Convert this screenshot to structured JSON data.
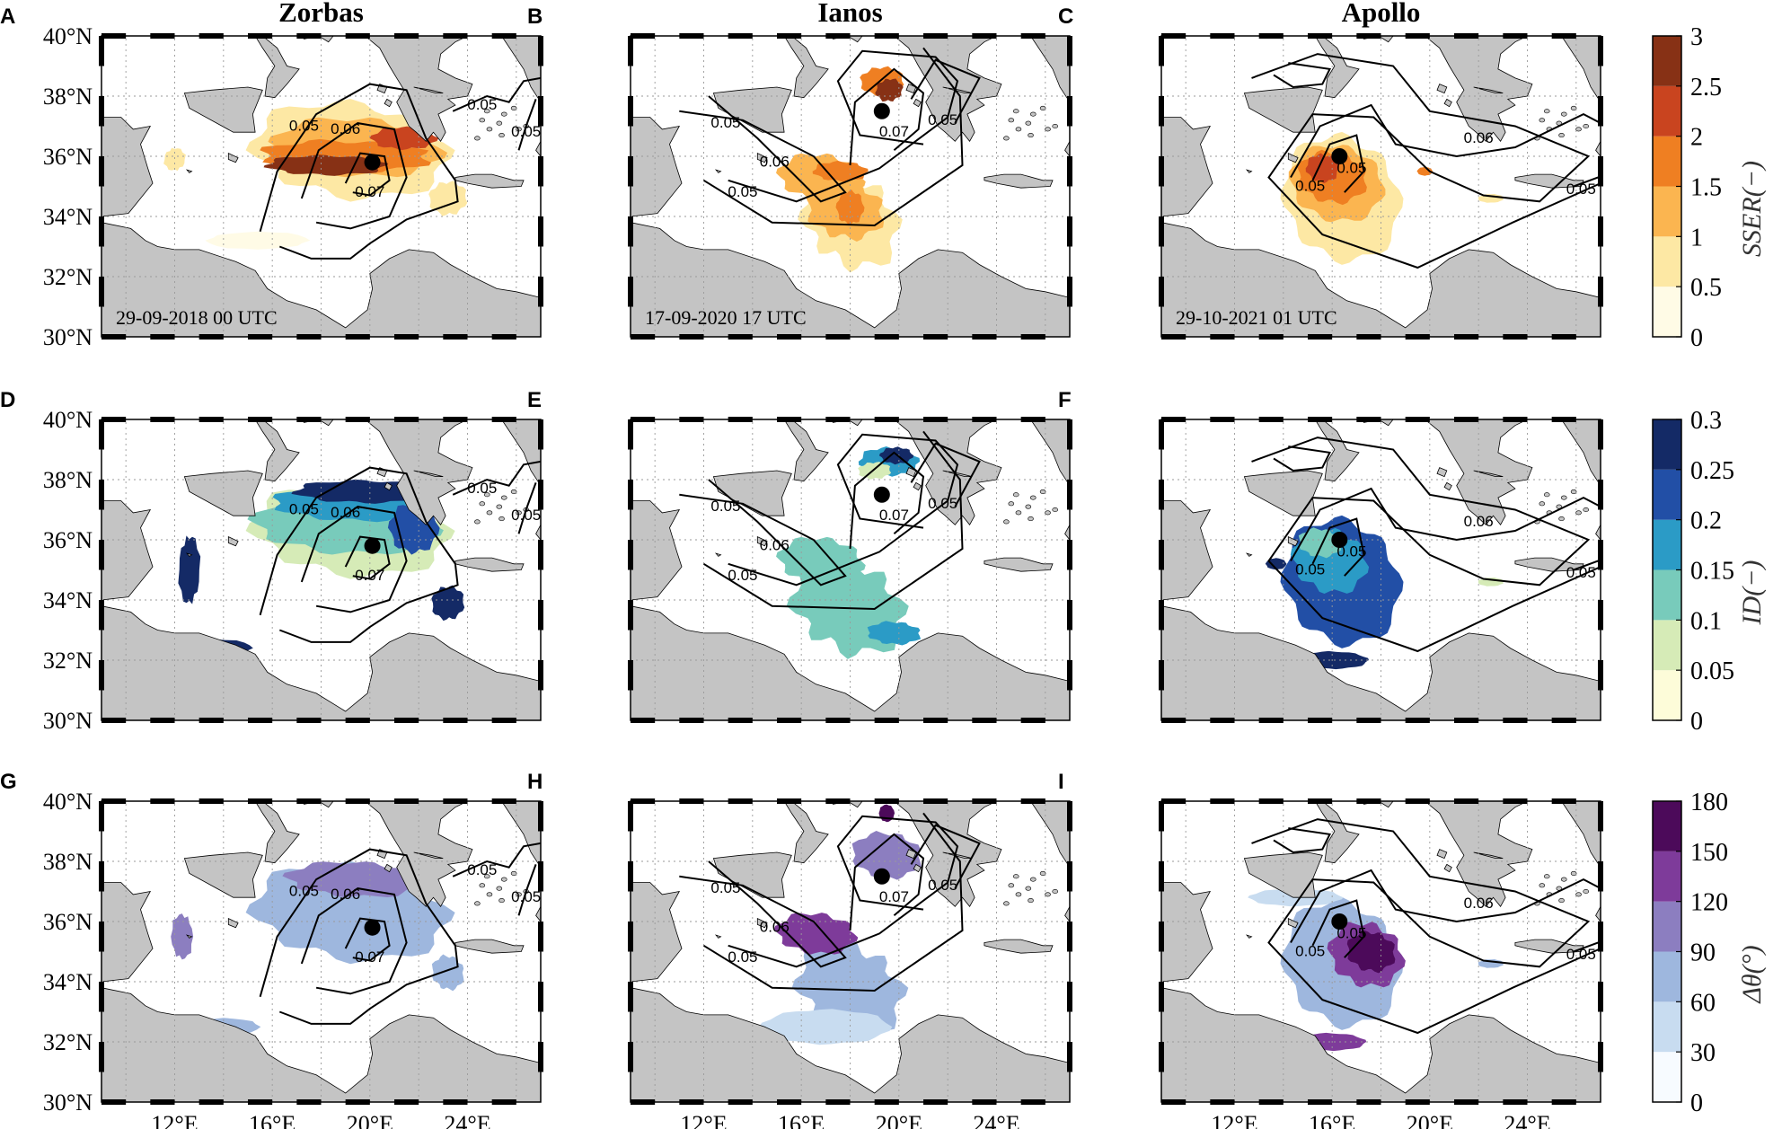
{
  "columns": [
    "Zorbas",
    "Ianos",
    "Apollo"
  ],
  "panel_labels": [
    "A",
    "B",
    "C",
    "D",
    "E",
    "F",
    "G",
    "H",
    "I"
  ],
  "timestamps": [
    "29-09-2018 00 UTC",
    "17-09-2020 17 UTC",
    "29-10-2021 01 UTC"
  ],
  "lat_labels": [
    "40°N",
    "38°N",
    "36°N",
    "34°N",
    "32°N",
    "30°N"
  ],
  "lon_labels": [
    "12°E",
    "16°E",
    "20°E",
    "24°E"
  ],
  "contour_labels": [
    "0.05",
    "0.06",
    "0.07"
  ],
  "colors": {
    "land": "#c4c4c4",
    "sea": "#ffffff",
    "contour": "#000000",
    "cyclone_center": "#000000"
  },
  "colorbars": [
    {
      "label": "SSER(−)",
      "ticks": [
        "0",
        "0.5",
        "1",
        "1.5",
        "2",
        "2.5",
        "3"
      ],
      "colors": [
        "#fffbe6",
        "#fde8a4",
        "#fbb550",
        "#ef7f22",
        "#c9441f",
        "#873115"
      ]
    },
    {
      "label": "ID(−)",
      "ticks": [
        "0",
        "0.05",
        "0.1",
        "0.15",
        "0.2",
        "0.25",
        "0.3"
      ],
      "colors": [
        "#fdfcd9",
        "#d6ebb7",
        "#78cbbb",
        "#2b9bc6",
        "#224fa6",
        "#142a66"
      ]
    },
    {
      "label": "Δθ(°)",
      "ticks": [
        "0",
        "30",
        "60",
        "90",
        "120",
        "150",
        "180"
      ],
      "colors": [
        "#f7fbff",
        "#c8dcf0",
        "#9eb7de",
        "#8c7ec0",
        "#7e3b9a",
        "#4c0a5a"
      ]
    }
  ],
  "map_extent": {
    "lon": [
      9,
      27
    ],
    "lat": [
      30,
      40
    ]
  },
  "cyclone_centers": [
    {
      "lon": 20.1,
      "lat": 35.8
    },
    {
      "lon": 19.3,
      "lat": 37.5
    },
    {
      "lon": 16.3,
      "lat": 36.0
    }
  ]
}
